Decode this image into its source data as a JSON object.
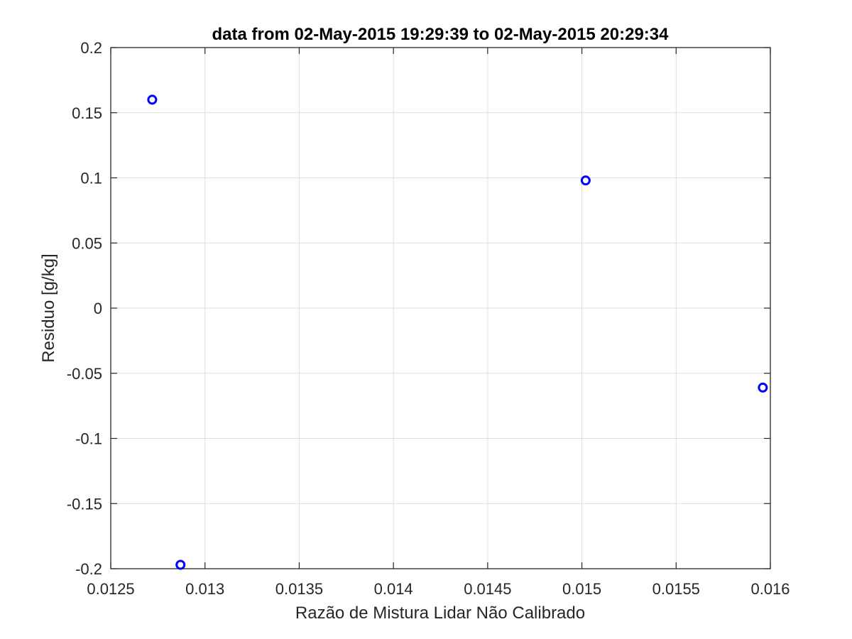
{
  "chart_data": {
    "type": "scatter",
    "title": "data from 02-May-2015 19:29:39 to 02-May-2015 20:29:34",
    "xlabel": "Razão de Mistura Lidar Não Calibrado",
    "ylabel": "Residuo [g/kg]",
    "xlim": [
      0.0125,
      0.016
    ],
    "ylim": [
      -0.2,
      0.2
    ],
    "grid": true,
    "x_ticks": [
      0.0125,
      0.013,
      0.0135,
      0.014,
      0.0145,
      0.015,
      0.0155,
      0.016
    ],
    "x_tick_labels": [
      "0.0125",
      "0.013",
      "0.0135",
      "0.014",
      "0.0145",
      "0.015",
      "0.0155",
      "0.016"
    ],
    "y_ticks": [
      0.2,
      0.15,
      0.1,
      0.05,
      0,
      -0.05,
      -0.1,
      -0.15,
      -0.2
    ],
    "y_tick_labels": [
      "0.2",
      "0.15",
      "0.1",
      "0.05",
      "0",
      "-0.05",
      "-0.1",
      "-0.15",
      "-0.2"
    ],
    "series": [
      {
        "marker": "circle-open",
        "color": "#0000ff",
        "x": [
          0.01272,
          0.01287,
          0.01502,
          0.01596
        ],
        "y": [
          0.16,
          -0.197,
          0.098,
          -0.061
        ]
      }
    ],
    "colors": {
      "axis": "#262626",
      "grid": "#dfdfdf",
      "marker": "#0000ff"
    }
  }
}
